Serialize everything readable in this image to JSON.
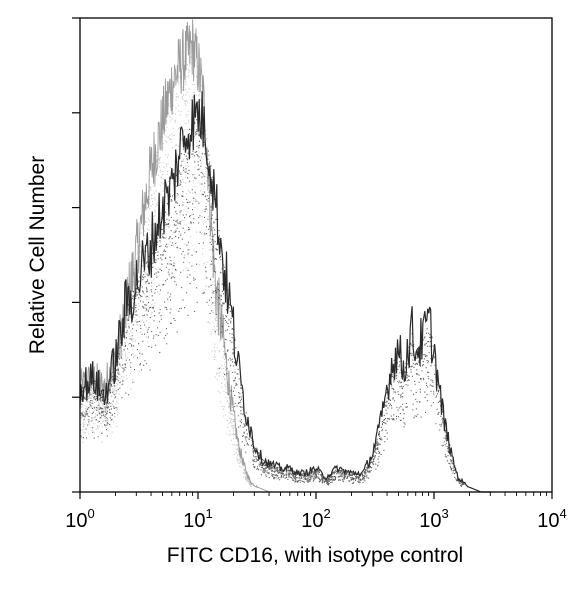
{
  "chart_data": {
    "type": "area",
    "title": "",
    "xlabel": "FITC CD16, with isotype control",
    "ylabel": "Relative Cell Number",
    "x_scale": "log",
    "xlim": [
      1,
      10000
    ],
    "ylim": [
      0,
      100
    ],
    "x_ticks": [
      {
        "value": 1,
        "base": "10",
        "exp": "0"
      },
      {
        "value": 10,
        "base": "10",
        "exp": "1"
      },
      {
        "value": 100,
        "base": "10",
        "exp": "2"
      },
      {
        "value": 1000,
        "base": "10",
        "exp": "3"
      },
      {
        "value": 10000,
        "base": "10",
        "exp": "4"
      }
    ],
    "y_tick_values": [
      0,
      20,
      40,
      60,
      80,
      100
    ],
    "grid": false,
    "legend": "none",
    "series": [
      {
        "role": "isotype-control",
        "color": "#9a9a9a",
        "x": [
          1,
          1.3,
          1.6,
          2,
          2.5,
          3,
          3.5,
          4,
          5,
          6,
          7,
          8,
          9,
          10,
          11,
          12,
          13,
          14,
          16,
          18,
          20,
          22,
          25,
          28,
          32,
          36,
          40,
          50
        ],
        "y": [
          22,
          24,
          22,
          28,
          40,
          50,
          60,
          68,
          78,
          86,
          90,
          92,
          94,
          90,
          84,
          72,
          56,
          44,
          34,
          24,
          16,
          10,
          5,
          2,
          1,
          0.5,
          0,
          0
        ]
      },
      {
        "role": "cd16-stained",
        "color": "#2a2a2a",
        "x": [
          1,
          1.3,
          1.6,
          2,
          2.5,
          3,
          3.5,
          4,
          5,
          6,
          7,
          8,
          9,
          10,
          11,
          12,
          13,
          14,
          15,
          16,
          18,
          20,
          22,
          25,
          30,
          35,
          40,
          50,
          60,
          70,
          80,
          100,
          120,
          150,
          200,
          250,
          300,
          350,
          400,
          450,
          500,
          550,
          600,
          650,
          700,
          800,
          900,
          1000,
          1100,
          1200,
          1400,
          1600,
          2000,
          2500,
          3000
        ],
        "y": [
          22,
          24,
          20,
          28,
          40,
          44,
          48,
          52,
          60,
          64,
          72,
          76,
          78,
          80,
          78,
          74,
          68,
          62,
          56,
          50,
          42,
          34,
          26,
          18,
          10,
          7,
          6,
          5,
          5,
          4,
          4,
          5,
          3,
          5,
          4,
          4,
          8,
          14,
          22,
          28,
          30,
          26,
          30,
          34,
          30,
          32,
          36,
          30,
          22,
          16,
          8,
          3,
          1,
          0,
          0
        ]
      }
    ]
  }
}
